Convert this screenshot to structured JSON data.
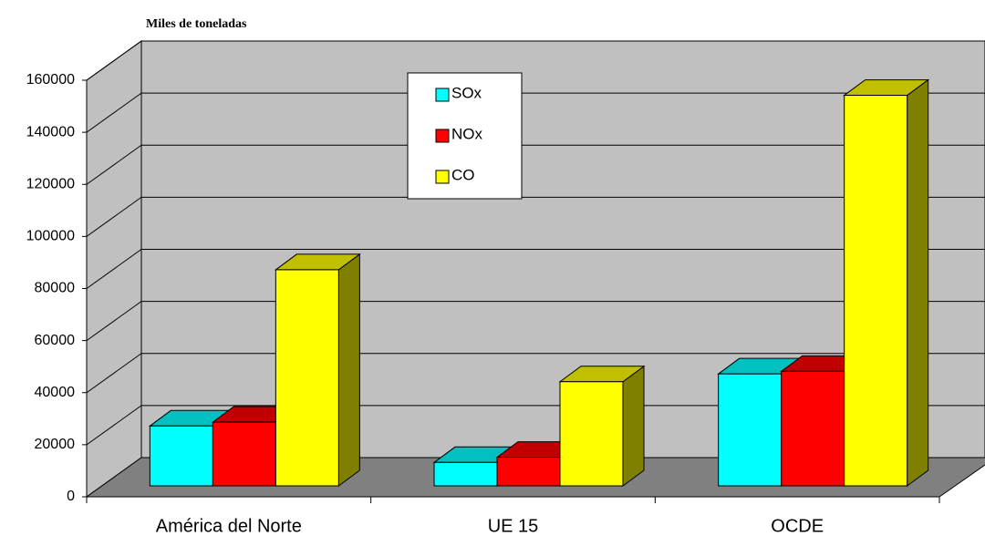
{
  "chart_data": {
    "type": "bar3d",
    "title": "Miles de toneladas",
    "categories": [
      "América del Norte",
      "UE 15",
      "OCDE"
    ],
    "series": [
      {
        "name": "SOx",
        "color": "#00ffff",
        "top_color": "#00c0c0",
        "side_color": "#008080",
        "values": [
          23000,
          9000,
          43000
        ]
      },
      {
        "name": "NOx",
        "color": "#ff0000",
        "top_color": "#c00000",
        "side_color": "#800000",
        "values": [
          24500,
          11000,
          44000
        ]
      },
      {
        "name": "CO",
        "color": "#ffff00",
        "top_color": "#c0c000",
        "side_color": "#808000",
        "values": [
          83000,
          40000,
          150000
        ]
      }
    ],
    "ylim": [
      0,
      160000
    ],
    "yticks": [
      0,
      20000,
      40000,
      60000,
      80000,
      100000,
      120000,
      140000,
      160000
    ],
    "grid": true
  }
}
